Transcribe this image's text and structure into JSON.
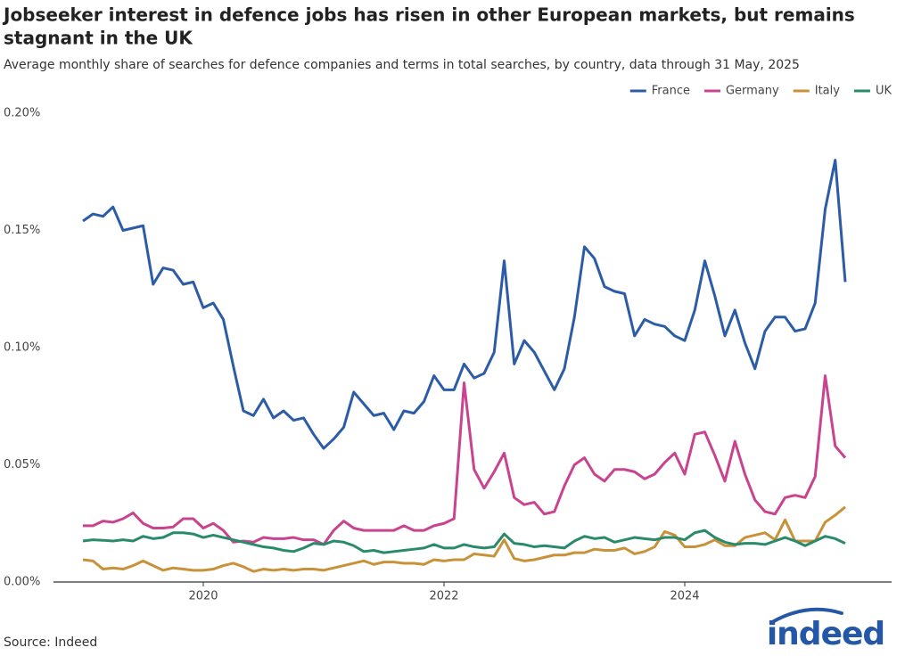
{
  "chart_data": {
    "type": "line",
    "title_lines": [
      "Jobseeker interest in defence jobs has risen in other European markets, but remains",
      "stagnant in the UK"
    ],
    "subtitle": "Average monthly share of searches for defence companies and terms in total searches, by country, data through 31 May, 2025",
    "source": "Source: Indeed",
    "logo": "indeed",
    "legend_position": "top-right",
    "categories": [
      null,
      null,
      null,
      null,
      null,
      null,
      null,
      null,
      null,
      null,
      null,
      null,
      "2020",
      null,
      null,
      null,
      null,
      null,
      null,
      null,
      null,
      null,
      null,
      null,
      null,
      null,
      null,
      null,
      null,
      null,
      null,
      null,
      null,
      null,
      null,
      null,
      "2022",
      null,
      null,
      null,
      null,
      null,
      null,
      null,
      null,
      null,
      null,
      null,
      null,
      null,
      null,
      null,
      null,
      null,
      null,
      null,
      null,
      null,
      null,
      null,
      "2024",
      null,
      null,
      null,
      null,
      null,
      null,
      null,
      null,
      null,
      null,
      null,
      null,
      null,
      null,
      null,
      null
    ],
    "ylim": [
      0,
      0.2
    ],
    "yticks": [
      {
        "value": 0,
        "label": "0.00%"
      },
      {
        "value": 0.05,
        "label": "0.05%"
      },
      {
        "value": 0.1,
        "label": "0.10%"
      },
      {
        "value": 0.15,
        "label": "0.15%"
      },
      {
        "value": 0.2,
        "label": "0.20%"
      }
    ],
    "series": [
      {
        "name": "France",
        "color": "#2d5ca6",
        "values": [
          0.154,
          0.157,
          0.156,
          0.16,
          0.15,
          0.151,
          0.152,
          0.127,
          0.134,
          0.133,
          0.127,
          0.128,
          0.117,
          0.119,
          0.112,
          0.092,
          0.073,
          0.071,
          0.078,
          0.07,
          0.073,
          0.069,
          0.07,
          0.063,
          0.057,
          0.061,
          0.066,
          0.081,
          0.076,
          0.071,
          0.072,
          0.065,
          0.073,
          0.072,
          0.077,
          0.088,
          0.082,
          0.082,
          0.093,
          0.087,
          0.089,
          0.098,
          0.137,
          0.093,
          0.103,
          0.098,
          0.09,
          0.082,
          0.091,
          0.113,
          0.143,
          0.138,
          0.126,
          0.124,
          0.123,
          0.105,
          0.112,
          0.11,
          0.109,
          0.105,
          0.103,
          0.116,
          0.137,
          0.122,
          0.105,
          0.116,
          0.102,
          0.091,
          0.107,
          0.113,
          0.113,
          0.107,
          0.108,
          0.119,
          0.159,
          0.18,
          0.128
        ]
      },
      {
        "name": "Germany",
        "color": "#c8448e",
        "values": [
          0.024,
          0.024,
          0.026,
          0.0255,
          0.027,
          0.0295,
          0.025,
          0.023,
          0.023,
          0.0235,
          0.027,
          0.027,
          0.023,
          0.025,
          0.022,
          0.017,
          0.0175,
          0.017,
          0.019,
          0.0185,
          0.0185,
          0.019,
          0.018,
          0.018,
          0.016,
          0.022,
          0.026,
          0.023,
          0.022,
          0.022,
          0.022,
          0.022,
          0.024,
          0.022,
          0.022,
          0.024,
          0.025,
          0.027,
          0.085,
          0.048,
          0.04,
          0.047,
          0.055,
          0.036,
          0.033,
          0.034,
          0.029,
          0.03,
          0.041,
          0.05,
          0.053,
          0.046,
          0.043,
          0.048,
          0.048,
          0.047,
          0.044,
          0.046,
          0.051,
          0.055,
          0.046,
          0.063,
          0.064,
          0.054,
          0.043,
          0.06,
          0.046,
          0.035,
          0.03,
          0.029,
          0.036,
          0.037,
          0.036,
          0.045,
          0.088,
          0.058,
          0.053
        ]
      },
      {
        "name": "Italy",
        "color": "#c8923a",
        "values": [
          0.0095,
          0.009,
          0.0055,
          0.006,
          0.0055,
          0.007,
          0.009,
          0.007,
          0.005,
          0.006,
          0.0055,
          0.005,
          0.005,
          0.0055,
          0.007,
          0.008,
          0.0065,
          0.0045,
          0.0055,
          0.005,
          0.0055,
          0.005,
          0.0055,
          0.0055,
          0.005,
          0.006,
          0.007,
          0.008,
          0.009,
          0.0075,
          0.0085,
          0.0085,
          0.008,
          0.008,
          0.0075,
          0.0095,
          0.009,
          0.0095,
          0.0095,
          0.012,
          0.0115,
          0.011,
          0.018,
          0.01,
          0.009,
          0.0095,
          0.0105,
          0.0115,
          0.0115,
          0.0125,
          0.0125,
          0.014,
          0.0135,
          0.0135,
          0.0145,
          0.012,
          0.013,
          0.015,
          0.0215,
          0.02,
          0.015,
          0.015,
          0.016,
          0.018,
          0.0155,
          0.0155,
          0.019,
          0.02,
          0.021,
          0.018,
          0.0265,
          0.0175,
          0.0175,
          0.0175,
          0.0255,
          0.0285,
          0.032
        ]
      },
      {
        "name": "UK",
        "color": "#2a8a6c",
        "values": [
          0.0175,
          0.018,
          0.0178,
          0.0175,
          0.018,
          0.0175,
          0.0195,
          0.0185,
          0.019,
          0.021,
          0.021,
          0.0205,
          0.019,
          0.02,
          0.019,
          0.018,
          0.017,
          0.016,
          0.015,
          0.0145,
          0.0135,
          0.013,
          0.0145,
          0.0165,
          0.016,
          0.0175,
          0.017,
          0.0155,
          0.013,
          0.0135,
          0.0125,
          0.013,
          0.0135,
          0.014,
          0.0145,
          0.016,
          0.0145,
          0.0145,
          0.016,
          0.015,
          0.0145,
          0.015,
          0.0205,
          0.0165,
          0.016,
          0.015,
          0.0155,
          0.015,
          0.0145,
          0.0175,
          0.0195,
          0.0185,
          0.019,
          0.017,
          0.018,
          0.019,
          0.0185,
          0.018,
          0.019,
          0.019,
          0.018,
          0.021,
          0.022,
          0.019,
          0.017,
          0.016,
          0.0165,
          0.0165,
          0.016,
          0.0175,
          0.019,
          0.0175,
          0.0155,
          0.0175,
          0.0195,
          0.0185,
          0.0165
        ]
      }
    ]
  }
}
